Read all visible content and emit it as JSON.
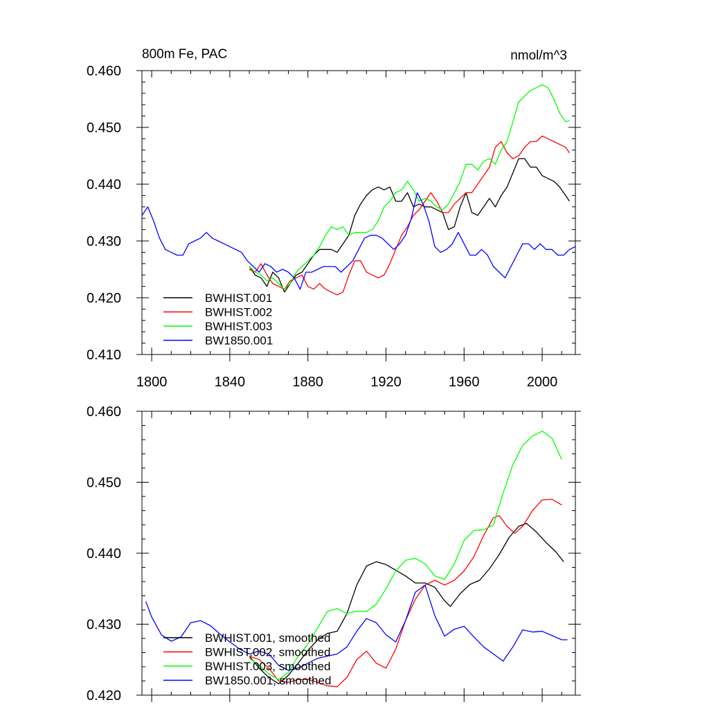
{
  "chart_data": [
    {
      "type": "line",
      "title_left": "800m Fe, PAC",
      "title_right": "nmol/m^3",
      "xlabel": "",
      "ylabel": "",
      "xlim": [
        1795,
        2017
      ],
      "ylim": [
        0.41,
        0.46
      ],
      "xticks": [
        1800,
        1840,
        1880,
        1920,
        1960,
        2000
      ],
      "xtick_labels": [
        "1800",
        "1840",
        "1880",
        "1920",
        "1960",
        "2000"
      ],
      "yticks": [
        0.41,
        0.42,
        0.43,
        0.44,
        0.45,
        0.46
      ],
      "ytick_labels": [
        "0.410",
        "0.420",
        "0.430",
        "0.440",
        "0.450",
        "0.460"
      ],
      "legend_location": "lower-left",
      "series": [
        {
          "name": "BWHIST.001",
          "color": "#000000",
          "x": [
            1850,
            1853,
            1856,
            1859,
            1862,
            1865,
            1868,
            1871,
            1874,
            1877,
            1880,
            1883,
            1886,
            1889,
            1892,
            1895,
            1898,
            1901,
            1904,
            1907,
            1910,
            1913,
            1916,
            1919,
            1922,
            1925,
            1928,
            1931,
            1934,
            1937,
            1940,
            1943,
            1946,
            1949,
            1952,
            1955,
            1958,
            1961,
            1964,
            1967,
            1970,
            1973,
            1976,
            1979,
            1982,
            1985,
            1988,
            1991,
            1994,
            1997,
            2000,
            2003,
            2006,
            2009,
            2012,
            2014
          ],
          "y": [
            0.4255,
            0.424,
            0.4235,
            0.422,
            0.4245,
            0.4235,
            0.421,
            0.4225,
            0.424,
            0.4245,
            0.426,
            0.4275,
            0.4285,
            0.4285,
            0.4285,
            0.428,
            0.4295,
            0.431,
            0.4345,
            0.4365,
            0.438,
            0.439,
            0.4395,
            0.439,
            0.4395,
            0.437,
            0.437,
            0.4385,
            0.436,
            0.4365,
            0.436,
            0.436,
            0.4355,
            0.435,
            0.432,
            0.4325,
            0.436,
            0.4385,
            0.435,
            0.4345,
            0.436,
            0.4375,
            0.436,
            0.438,
            0.4395,
            0.442,
            0.4445,
            0.4445,
            0.443,
            0.443,
            0.4415,
            0.441,
            0.4405,
            0.4395,
            0.438,
            0.437
          ]
        },
        {
          "name": "BWHIST.002",
          "color": "#ff0000",
          "x": [
            1850,
            1853,
            1856,
            1859,
            1862,
            1865,
            1868,
            1871,
            1874,
            1877,
            1880,
            1883,
            1886,
            1889,
            1892,
            1895,
            1898,
            1901,
            1904,
            1907,
            1910,
            1913,
            1916,
            1919,
            1922,
            1925,
            1928,
            1931,
            1934,
            1937,
            1940,
            1943,
            1946,
            1949,
            1952,
            1955,
            1958,
            1961,
            1964,
            1967,
            1970,
            1973,
            1976,
            1979,
            1982,
            1985,
            1988,
            1991,
            1994,
            1997,
            2000,
            2003,
            2006,
            2009,
            2012,
            2014
          ],
          "y": [
            0.425,
            0.4245,
            0.426,
            0.424,
            0.4225,
            0.422,
            0.4215,
            0.423,
            0.4235,
            0.424,
            0.422,
            0.4215,
            0.4225,
            0.4215,
            0.421,
            0.4205,
            0.421,
            0.424,
            0.4265,
            0.4265,
            0.4245,
            0.424,
            0.4235,
            0.424,
            0.426,
            0.4285,
            0.431,
            0.4325,
            0.4345,
            0.4355,
            0.437,
            0.4385,
            0.437,
            0.435,
            0.435,
            0.4365,
            0.4375,
            0.4385,
            0.4385,
            0.44,
            0.4415,
            0.443,
            0.4465,
            0.4475,
            0.4455,
            0.4445,
            0.445,
            0.4465,
            0.4475,
            0.4475,
            0.4485,
            0.448,
            0.4475,
            0.447,
            0.4465,
            0.4455
          ]
        },
        {
          "name": "BWHIST.003",
          "color": "#00ff00",
          "x": [
            1850,
            1853,
            1856,
            1859,
            1862,
            1865,
            1868,
            1871,
            1874,
            1877,
            1880,
            1883,
            1886,
            1889,
            1892,
            1895,
            1898,
            1901,
            1904,
            1907,
            1910,
            1913,
            1916,
            1919,
            1922,
            1925,
            1928,
            1931,
            1934,
            1937,
            1940,
            1943,
            1946,
            1949,
            1952,
            1955,
            1958,
            1961,
            1964,
            1967,
            1970,
            1973,
            1976,
            1979,
            1982,
            1985,
            1988,
            1991,
            1994,
            1997,
            2000,
            2003,
            2006,
            2009,
            2012,
            2014
          ],
          "y": [
            0.4255,
            0.4245,
            0.424,
            0.423,
            0.4235,
            0.4225,
            0.4215,
            0.4225,
            0.4245,
            0.4255,
            0.4265,
            0.4275,
            0.429,
            0.431,
            0.4325,
            0.432,
            0.4325,
            0.431,
            0.4315,
            0.4315,
            0.4315,
            0.432,
            0.4335,
            0.436,
            0.437,
            0.4385,
            0.439,
            0.4405,
            0.439,
            0.437,
            0.4375,
            0.437,
            0.436,
            0.4355,
            0.4365,
            0.4385,
            0.4405,
            0.4435,
            0.4435,
            0.4425,
            0.444,
            0.4445,
            0.4435,
            0.446,
            0.4475,
            0.451,
            0.4545,
            0.4555,
            0.4565,
            0.457,
            0.4575,
            0.457,
            0.455,
            0.4525,
            0.451,
            0.4512
          ]
        },
        {
          "name": "BW1850.001",
          "color": "#0000ff",
          "x": [
            1795,
            1798,
            1801,
            1804,
            1807,
            1810,
            1813,
            1816,
            1819,
            1822,
            1825,
            1828,
            1831,
            1834,
            1837,
            1840,
            1843,
            1846,
            1849,
            1852,
            1855,
            1858,
            1861,
            1864,
            1867,
            1870,
            1873,
            1876,
            1879,
            1882,
            1885,
            1888,
            1891,
            1894,
            1897,
            1900,
            1903,
            1906,
            1909,
            1912,
            1915,
            1918,
            1921,
            1924,
            1927,
            1930,
            1933,
            1936,
            1939,
            1942,
            1945,
            1948,
            1951,
            1954,
            1957,
            1960,
            1963,
            1966,
            1969,
            1972,
            1975,
            1978,
            1981,
            1984,
            1987,
            1990,
            1993,
            1996,
            1999,
            2002,
            2005,
            2008,
            2011,
            2014,
            2017
          ],
          "y": [
            0.4345,
            0.436,
            0.4335,
            0.4305,
            0.4285,
            0.428,
            0.4275,
            0.4275,
            0.4295,
            0.43,
            0.4305,
            0.4315,
            0.4305,
            0.43,
            0.4295,
            0.429,
            0.4285,
            0.428,
            0.4265,
            0.4255,
            0.4245,
            0.426,
            0.4255,
            0.4245,
            0.425,
            0.4245,
            0.4235,
            0.4215,
            0.4245,
            0.4245,
            0.425,
            0.4255,
            0.4255,
            0.4255,
            0.4245,
            0.4255,
            0.4265,
            0.4285,
            0.4305,
            0.431,
            0.431,
            0.4305,
            0.4295,
            0.4285,
            0.4295,
            0.431,
            0.434,
            0.4385,
            0.4365,
            0.4335,
            0.429,
            0.428,
            0.4285,
            0.4295,
            0.4315,
            0.4295,
            0.4275,
            0.4275,
            0.4285,
            0.4275,
            0.4255,
            0.4245,
            0.4235,
            0.4255,
            0.4275,
            0.4295,
            0.4295,
            0.4285,
            0.4295,
            0.4285,
            0.4285,
            0.4275,
            0.4275,
            0.4285,
            0.429
          ]
        }
      ]
    },
    {
      "type": "line",
      "title_left": "",
      "title_right": "",
      "xlabel": "",
      "ylabel": "",
      "xlim": [
        1795,
        2017
      ],
      "ylim": [
        0.42,
        0.46
      ],
      "xticks": [
        1800,
        1840,
        1880,
        1920,
        1960,
        2000
      ],
      "xtick_labels": [],
      "yticks": [
        0.42,
        0.43,
        0.44,
        0.45,
        0.46
      ],
      "ytick_labels": [
        "0.420",
        "0.430",
        "0.440",
        "0.450",
        "0.460"
      ],
      "legend_location": "lower-left",
      "series": [
        {
          "name": "BWHIST.001, smoothed",
          "color": "#000000",
          "x": [
            1850,
            1855,
            1860,
            1865,
            1870,
            1875,
            1880,
            1885,
            1890,
            1895,
            1900,
            1905,
            1910,
            1915,
            1920,
            1925,
            1930,
            1935,
            1940,
            1945,
            1950,
            1953,
            1958,
            1963,
            1968,
            1973,
            1978,
            1983,
            1988,
            1992,
            1997,
            2002,
            2007,
            2011
          ],
          "y": [
            0.4255,
            0.4238,
            0.4225,
            0.4216,
            0.4228,
            0.4245,
            0.4263,
            0.4278,
            0.4287,
            0.429,
            0.4315,
            0.4355,
            0.4382,
            0.4388,
            0.4384,
            0.4376,
            0.4368,
            0.4358,
            0.4358,
            0.4352,
            0.4333,
            0.4325,
            0.4343,
            0.4356,
            0.4362,
            0.4378,
            0.4398,
            0.4422,
            0.4438,
            0.4442,
            0.443,
            0.4415,
            0.4402,
            0.4388
          ]
        },
        {
          "name": "BWHIST.002, smoothed",
          "color": "#ff0000",
          "x": [
            1850,
            1855,
            1860,
            1865,
            1870,
            1875,
            1880,
            1885,
            1890,
            1895,
            1900,
            1905,
            1910,
            1915,
            1920,
            1925,
            1930,
            1935,
            1940,
            1945,
            1950,
            1955,
            1960,
            1965,
            1970,
            1975,
            1978,
            1982,
            1986,
            1990,
            1995,
            2000,
            2005,
            2010
          ],
          "y": [
            0.4255,
            0.425,
            0.4238,
            0.422,
            0.4218,
            0.4222,
            0.4222,
            0.4218,
            0.4213,
            0.4212,
            0.4225,
            0.425,
            0.4262,
            0.4245,
            0.4238,
            0.4265,
            0.4305,
            0.4335,
            0.4355,
            0.4362,
            0.4355,
            0.4362,
            0.4375,
            0.4395,
            0.4425,
            0.445,
            0.4453,
            0.4438,
            0.4428,
            0.4438,
            0.446,
            0.4475,
            0.4476,
            0.4468
          ]
        },
        {
          "name": "BWHIST.003, smoothed",
          "color": "#00ff00",
          "x": [
            1850,
            1855,
            1860,
            1865,
            1870,
            1875,
            1880,
            1885,
            1890,
            1895,
            1900,
            1905,
            1910,
            1915,
            1920,
            1925,
            1930,
            1935,
            1940,
            1945,
            1950,
            1955,
            1960,
            1965,
            1970,
            1975,
            1980,
            1985,
            1990,
            1995,
            2000,
            2005,
            2010
          ],
          "y": [
            0.4252,
            0.4242,
            0.423,
            0.4222,
            0.4232,
            0.4255,
            0.4272,
            0.4295,
            0.4318,
            0.4322,
            0.4315,
            0.4318,
            0.4318,
            0.4328,
            0.435,
            0.4375,
            0.439,
            0.4393,
            0.4385,
            0.4368,
            0.4363,
            0.4385,
            0.4418,
            0.4432,
            0.4433,
            0.444,
            0.4485,
            0.4525,
            0.4552,
            0.4565,
            0.4572,
            0.4562,
            0.4532
          ]
        },
        {
          "name": "BW1850.001, smoothed",
          "color": "#0000ff",
          "x": [
            1797,
            1800,
            1805,
            1810,
            1815,
            1820,
            1825,
            1830,
            1835,
            1840,
            1845,
            1850,
            1855,
            1860,
            1865,
            1870,
            1875,
            1880,
            1885,
            1890,
            1895,
            1900,
            1905,
            1910,
            1915,
            1920,
            1925,
            1930,
            1935,
            1940,
            1945,
            1950,
            1955,
            1960,
            1965,
            1970,
            1975,
            1980,
            1985,
            1990,
            1995,
            2000,
            2005,
            2010,
            2013
          ],
          "y": [
            0.4332,
            0.431,
            0.4285,
            0.4276,
            0.4282,
            0.4302,
            0.4305,
            0.4298,
            0.4286,
            0.4275,
            0.4265,
            0.4258,
            0.4262,
            0.4258,
            0.4242,
            0.4235,
            0.4238,
            0.4245,
            0.4252,
            0.4255,
            0.4258,
            0.4268,
            0.429,
            0.4308,
            0.4302,
            0.4285,
            0.4275,
            0.4305,
            0.4345,
            0.4355,
            0.4312,
            0.4283,
            0.4293,
            0.4297,
            0.4282,
            0.4268,
            0.4258,
            0.4248,
            0.4268,
            0.4292,
            0.4289,
            0.429,
            0.4284,
            0.4278,
            0.4278
          ]
        }
      ]
    }
  ]
}
